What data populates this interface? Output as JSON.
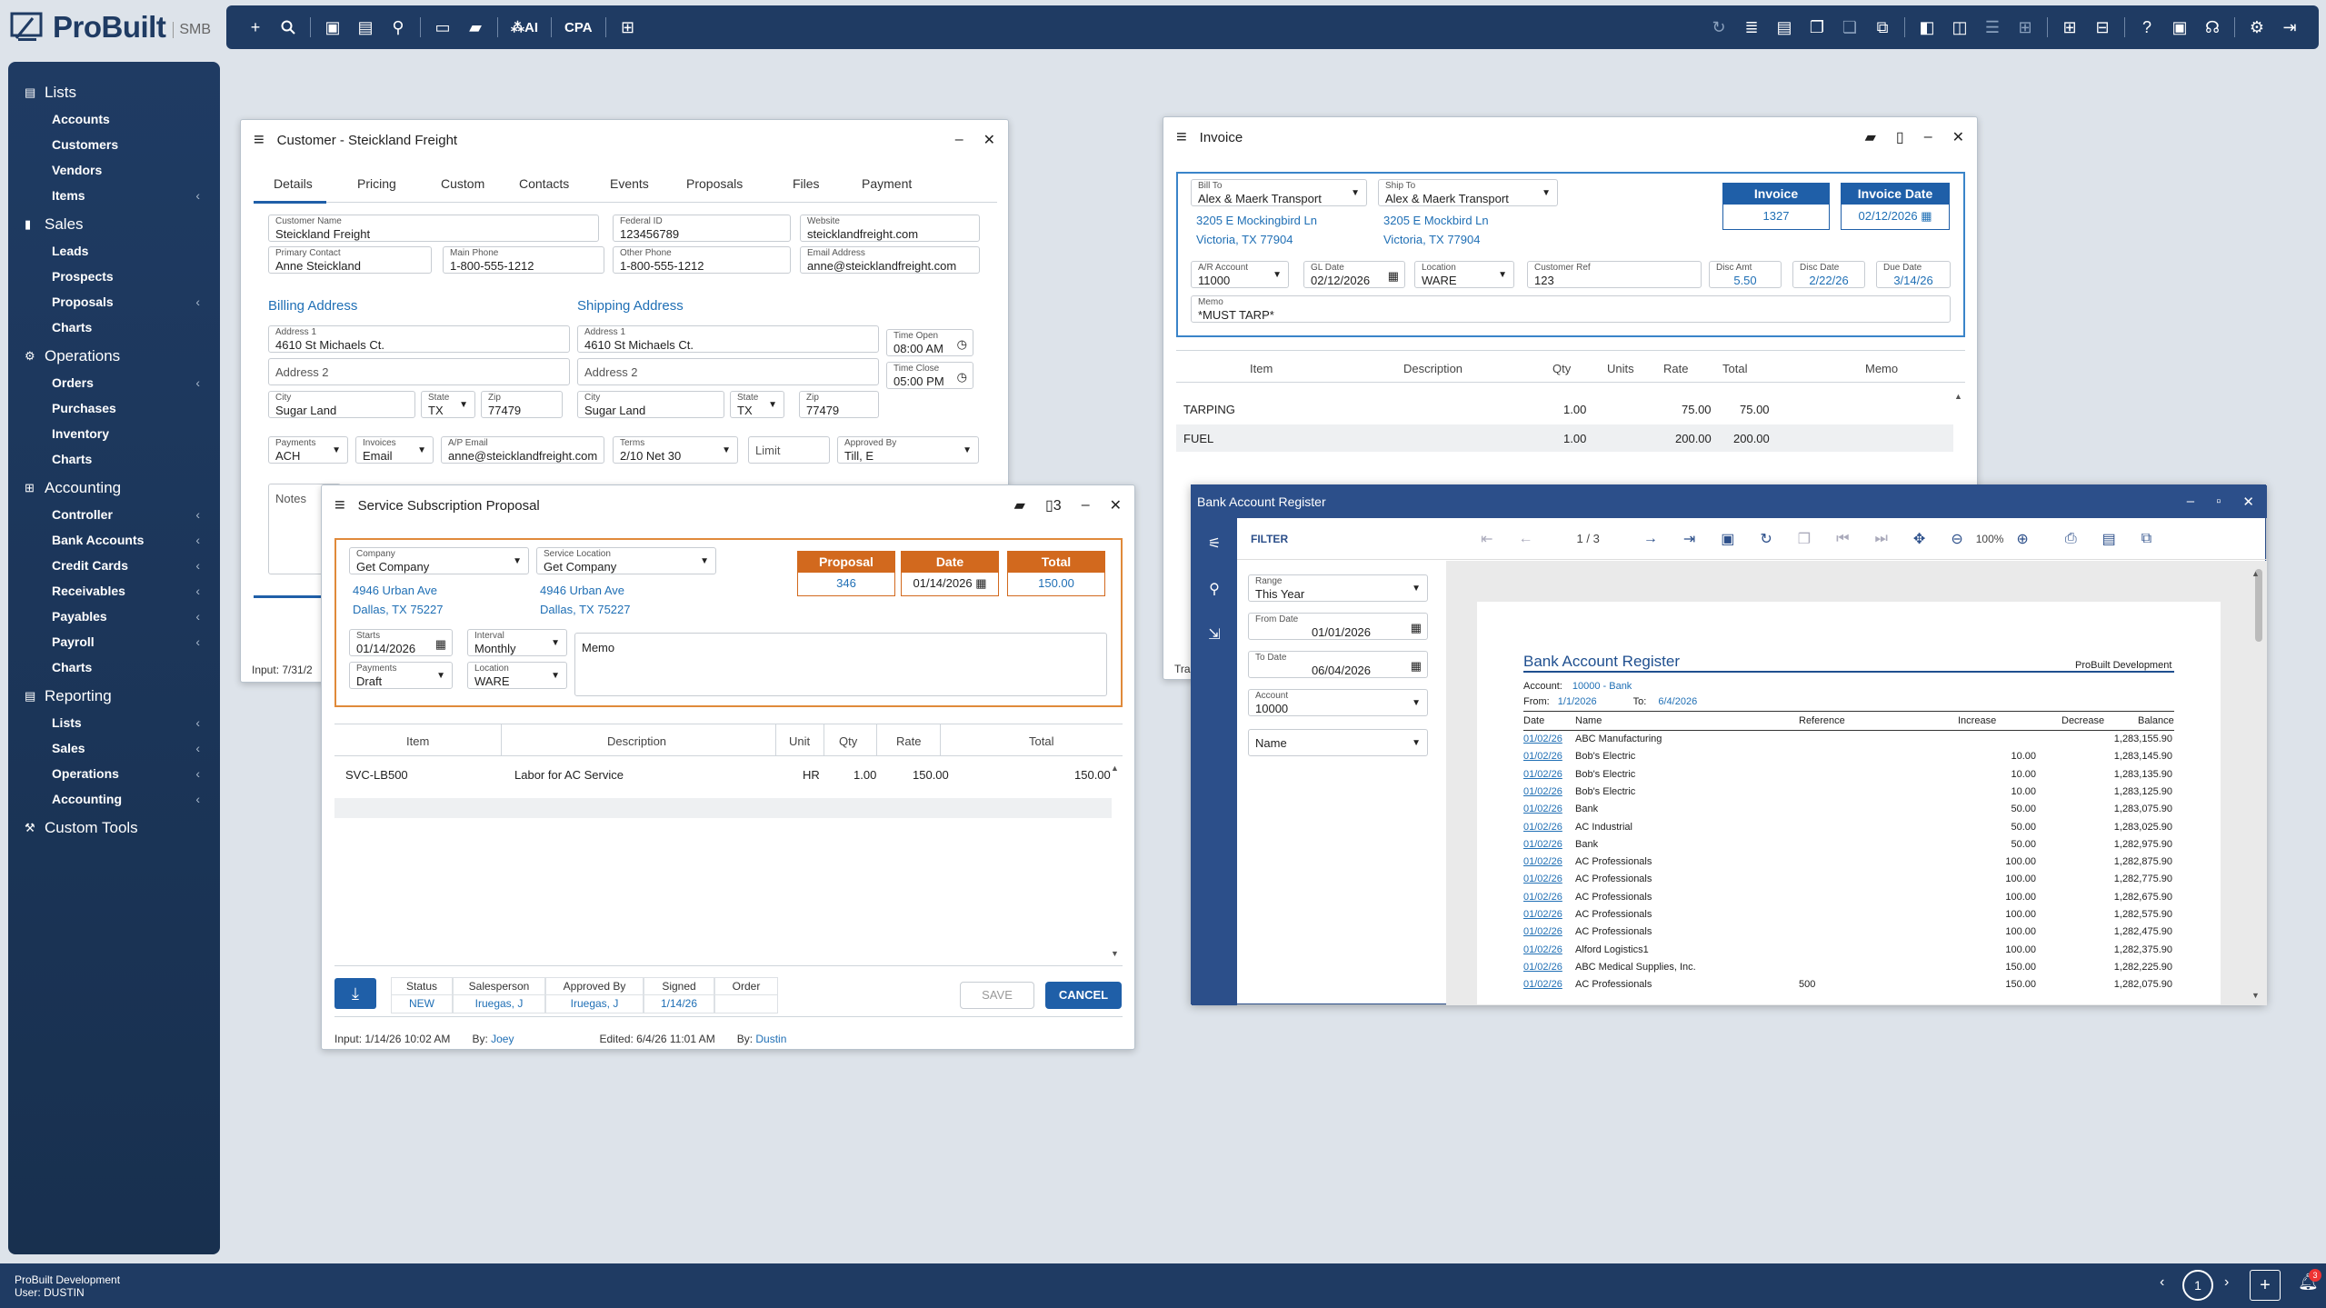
{
  "app": {
    "brand": "ProBuilt",
    "edition": "SMB"
  },
  "topbar": {
    "ai_label": "AI",
    "cpa_label": "CPA"
  },
  "sidebar": {
    "sections": [
      {
        "label": "Lists",
        "items": [
          {
            "label": "Accounts"
          },
          {
            "label": "Customers"
          },
          {
            "label": "Vendors"
          },
          {
            "label": "Items",
            "chev": "‹"
          }
        ]
      },
      {
        "label": "Sales",
        "items": [
          {
            "label": "Leads"
          },
          {
            "label": "Prospects"
          },
          {
            "label": "Proposals",
            "chev": "‹"
          },
          {
            "label": "Charts"
          }
        ]
      },
      {
        "label": "Operations",
        "items": [
          {
            "label": "Orders",
            "chev": "‹"
          },
          {
            "label": "Purchases"
          },
          {
            "label": "Inventory"
          },
          {
            "label": "Charts"
          }
        ]
      },
      {
        "label": "Accounting",
        "items": [
          {
            "label": "Controller",
            "chev": "‹"
          },
          {
            "label": "Bank Accounts",
            "chev": "‹"
          },
          {
            "label": "Credit Cards",
            "chev": "‹"
          },
          {
            "label": "Receivables",
            "chev": "‹"
          },
          {
            "label": "Payables",
            "chev": "‹"
          },
          {
            "label": "Payroll",
            "chev": "‹"
          },
          {
            "label": "Charts"
          }
        ]
      },
      {
        "label": "Reporting",
        "items": [
          {
            "label": "Lists",
            "chev": "‹"
          },
          {
            "label": "Sales",
            "chev": "‹"
          },
          {
            "label": "Operations",
            "chev": "‹"
          },
          {
            "label": "Accounting",
            "chev": "‹"
          }
        ]
      },
      {
        "label": "Custom Tools",
        "items": []
      }
    ]
  },
  "customer": {
    "title": "Customer - Steickland Freight",
    "tabs": [
      "Details",
      "Pricing",
      "Custom",
      "Contacts",
      "Events",
      "Proposals",
      "Files",
      "Payment"
    ],
    "customer_name_label": "Customer Name",
    "customer_name": "Steickland Freight",
    "federal_id_label": "Federal ID",
    "federal_id": "123456789",
    "website_label": "Website",
    "website": "steicklandfreight.com",
    "primary_contact_label": "Primary Contact",
    "primary_contact": "Anne Steickland",
    "main_phone_label": "Main Phone",
    "main_phone": "1-800-555-1212",
    "other_phone_label": "Other Phone",
    "other_phone": "1-800-555-1212",
    "email_label": "Email Address",
    "email": "anne@steicklandfreight.com",
    "billing_title": "Billing Address",
    "shipping_title": "Shipping Address",
    "address1_label": "Address 1",
    "bill_address1": "4610 St Michaels Ct.",
    "ship_address1": "4610 St Michaels Ct.",
    "address2_placeholder": "Address 2",
    "city_label": "City",
    "bill_city": "Sugar Land",
    "ship_city": "Sugar Land",
    "state_label": "State",
    "bill_state": "TX",
    "ship_state": "TX",
    "zip_label": "Zip",
    "bill_zip": "77479",
    "ship_zip": "77479",
    "time_open_label": "Time Open",
    "time_open": "08:00 AM",
    "time_close_label": "Time Close",
    "time_close": "05:00 PM",
    "payments_label": "Payments",
    "payments": "ACH",
    "invoices_label": "Invoices",
    "invoices": "Email",
    "ap_email_label": "A/P Email",
    "ap_email": "anne@steicklandfreight.com",
    "terms_label": "Terms",
    "terms": "2/10 Net 30",
    "limit_placeholder": "Limit",
    "approved_by_label": "Approved By",
    "approved_by": "Till, E",
    "notes_placeholder": "Notes",
    "input_footer": "Input: 7/31/2"
  },
  "invoice": {
    "title": "Invoice",
    "bill_to_label": "Bill To",
    "bill_to": "Alex & Maerk Transport",
    "bill_addr1": "3205 E Mockingbird Ln",
    "bill_addr2": "Victoria, TX 77904",
    "ship_to_label": "Ship To",
    "ship_to": "Alex & Maerk Transport",
    "ship_addr1": "3205 E Mockbird Ln",
    "ship_addr2": "Victoria, TX 77904",
    "invoice_label": "Invoice",
    "invoice_no": "1327",
    "invoice_date_label": "Invoice Date",
    "invoice_date": "02/12/2026",
    "ar_account_label": "A/R Account",
    "ar_account": "11000",
    "gl_date_label": "GL Date",
    "gl_date": "02/12/2026",
    "location_label": "Location",
    "location": "WARE",
    "customer_ref_label": "Customer Ref",
    "customer_ref": "123",
    "disc_amt_label": "Disc Amt",
    "disc_amt": "5.50",
    "disc_date_label": "Disc Date",
    "disc_date": "2/22/26",
    "due_date_label": "Due Date",
    "due_date": "3/14/26",
    "memo_label": "Memo",
    "memo": "*MUST TARP*",
    "columns": [
      "Item",
      "Description",
      "Qty",
      "Units",
      "Rate",
      "Total",
      "Memo"
    ],
    "rows": [
      {
        "item": "TARPING",
        "qty": "1.00",
        "rate": "75.00",
        "total": "75.00"
      },
      {
        "item": "FUEL",
        "qty": "1.00",
        "rate": "200.00",
        "total": "200.00"
      }
    ],
    "footer_frag": "Tra"
  },
  "proposal": {
    "title": "Service Subscription Proposal",
    "files_count": "3",
    "company_label": "Company",
    "company": "Get Company",
    "company_addr1": "4946 Urban Ave",
    "company_addr2": "Dallas, TX 75227",
    "service_location_label": "Service Location",
    "service_location": "Get Company",
    "service_addr1": "4946 Urban Ave",
    "service_addr2": "Dallas, TX 75227",
    "proposal_label": "Proposal",
    "proposal_no": "346",
    "date_label": "Date",
    "date": "01/14/2026",
    "total_label": "Total",
    "total": "150.00",
    "starts_label": "Starts",
    "starts": "01/14/2026",
    "interval_label": "Interval",
    "interval": "Monthly",
    "memo_placeholder": "Memo",
    "payments_label": "Payments",
    "payments": "Draft",
    "location_label": "Location",
    "location": "WARE",
    "columns": [
      "Item",
      "Description",
      "Unit",
      "Qty",
      "Rate",
      "Total"
    ],
    "rows": [
      {
        "item": "SVC-LB500",
        "description": "Labor for AC Service",
        "unit": "HR",
        "qty": "1.00",
        "rate": "150.00",
        "total": "150.00"
      }
    ],
    "status_headers": [
      "Status",
      "Salesperson",
      "Approved By",
      "Signed",
      "Order"
    ],
    "status_values": [
      "NEW",
      "Iruegas, J",
      "Iruegas, J",
      "1/14/26",
      ""
    ],
    "save_label": "SAVE",
    "cancel_label": "CANCEL",
    "footer": {
      "input": "Input: 1/14/26 10:02 AM",
      "by1_label": "By:",
      "by1": "Joey",
      "edited": "Edited: 6/4/26 11:01 AM",
      "by2_label": "By:",
      "by2": "Dustin"
    }
  },
  "register": {
    "title": "Bank Account Register",
    "filter_label": "FILTER",
    "page": "1 / 3",
    "zoom": "100%",
    "range_label": "Range",
    "range": "This Year",
    "from_date_label": "From Date",
    "from_date": "01/01/2026",
    "to_date_label": "To Date",
    "to_date": "06/04/2026",
    "account_label": "Account",
    "account": "10000",
    "sort": "Name",
    "report": {
      "title": "Bank Account Register",
      "company": "ProBuilt Development",
      "account_label": "Account:",
      "account": "10000 - Bank",
      "from_label": "From:",
      "from": "1/1/2026",
      "to_label": "To:",
      "to": "6/4/2026",
      "columns": [
        "Date",
        "Name",
        "Reference",
        "Increase",
        "Decrease",
        "Balance"
      ],
      "rows": [
        {
          "date": "01/02/26",
          "name": "ABC Manufacturing",
          "ref": "",
          "inc": "",
          "dec": "",
          "bal": "1,283,155.90"
        },
        {
          "date": "01/02/26",
          "name": "Bob's Electric",
          "ref": "",
          "inc": "",
          "dec": "10.00",
          "bal": "1,283,145.90"
        },
        {
          "date": "01/02/26",
          "name": "Bob's Electric",
          "ref": "",
          "inc": "",
          "dec": "10.00",
          "bal": "1,283,135.90"
        },
        {
          "date": "01/02/26",
          "name": "Bob's Electric",
          "ref": "",
          "inc": "",
          "dec": "10.00",
          "bal": "1,283,125.90"
        },
        {
          "date": "01/02/26",
          "name": "Bank",
          "ref": "",
          "inc": "",
          "dec": "50.00",
          "bal": "1,283,075.90"
        },
        {
          "date": "01/02/26",
          "name": "AC Industrial",
          "ref": "",
          "inc": "",
          "dec": "50.00",
          "bal": "1,283,025.90"
        },
        {
          "date": "01/02/26",
          "name": "Bank",
          "ref": "",
          "inc": "",
          "dec": "50.00",
          "bal": "1,282,975.90"
        },
        {
          "date": "01/02/26",
          "name": "AC Professionals",
          "ref": "",
          "inc": "",
          "dec": "100.00",
          "bal": "1,282,875.90"
        },
        {
          "date": "01/02/26",
          "name": "AC Professionals",
          "ref": "",
          "inc": "",
          "dec": "100.00",
          "bal": "1,282,775.90"
        },
        {
          "date": "01/02/26",
          "name": "AC Professionals",
          "ref": "",
          "inc": "",
          "dec": "100.00",
          "bal": "1,282,675.90"
        },
        {
          "date": "01/02/26",
          "name": "AC Professionals",
          "ref": "",
          "inc": "",
          "dec": "100.00",
          "bal": "1,282,575.90"
        },
        {
          "date": "01/02/26",
          "name": "AC Professionals",
          "ref": "",
          "inc": "",
          "dec": "100.00",
          "bal": "1,282,475.90"
        },
        {
          "date": "01/02/26",
          "name": "Alford Logistics1",
          "ref": "",
          "inc": "",
          "dec": "100.00",
          "bal": "1,282,375.90"
        },
        {
          "date": "01/02/26",
          "name": "ABC Medical Supplies, Inc.",
          "ref": "",
          "inc": "",
          "dec": "150.00",
          "bal": "1,282,225.90"
        },
        {
          "date": "01/02/26",
          "name": "AC Professionals",
          "ref": "500",
          "inc": "",
          "dec": "150.00",
          "bal": "1,282,075.90"
        }
      ]
    }
  },
  "statusbar": {
    "company": "ProBuilt Development",
    "user": "User: DUSTIN",
    "page": "1",
    "badge": "3"
  }
}
